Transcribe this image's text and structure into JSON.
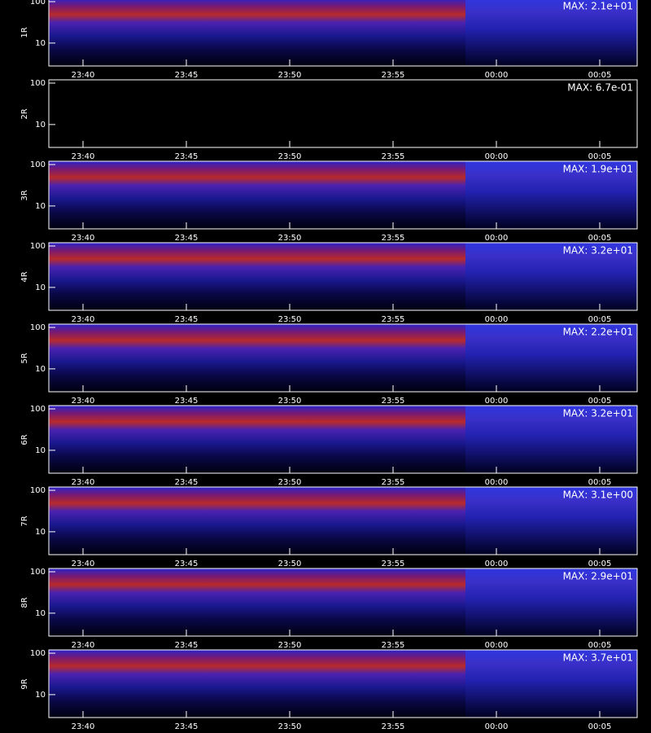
{
  "chart_data": [
    {
      "type": "spectrogram",
      "ylabel": "1R",
      "annotation": "MAX: 2.1e+01",
      "log_y": true,
      "ylim": [
        2.8,
        120
      ],
      "yticks": [
        10,
        100
      ],
      "xticks": [
        "23:40",
        "23:45",
        "23:50",
        "23:55",
        "00:00",
        "00:05"
      ]
    },
    {
      "type": "spectrogram",
      "ylabel": "2R",
      "annotation": "MAX: 6.7e-01",
      "log_y": true,
      "ylim": [
        2.8,
        120
      ],
      "yticks": [
        10,
        100
      ],
      "xticks": [
        "23:40",
        "23:45",
        "23:50",
        "23:55",
        "00:00",
        "00:05"
      ]
    },
    {
      "type": "spectrogram",
      "ylabel": "3R",
      "annotation": "MAX: 1.9e+01",
      "log_y": true,
      "ylim": [
        2.8,
        120
      ],
      "yticks": [
        10,
        100
      ],
      "xticks": [
        "23:40",
        "23:45",
        "23:50",
        "23:55",
        "00:00",
        "00:05"
      ]
    },
    {
      "type": "spectrogram",
      "ylabel": "4R",
      "annotation": "MAX: 3.2e+01",
      "log_y": true,
      "ylim": [
        2.8,
        120
      ],
      "yticks": [
        10,
        100
      ],
      "xticks": [
        "23:40",
        "23:45",
        "23:50",
        "23:55",
        "00:00",
        "00:05"
      ]
    },
    {
      "type": "spectrogram",
      "ylabel": "5R",
      "annotation": "MAX: 2.2e+01",
      "log_y": true,
      "ylim": [
        2.8,
        120
      ],
      "yticks": [
        10,
        100
      ],
      "xticks": [
        "23:40",
        "23:45",
        "23:50",
        "23:55",
        "00:00",
        "00:05"
      ]
    },
    {
      "type": "spectrogram",
      "ylabel": "6R",
      "annotation": "MAX: 3.2e+01",
      "log_y": true,
      "ylim": [
        2.8,
        120
      ],
      "yticks": [
        10,
        100
      ],
      "xticks": [
        "23:40",
        "23:45",
        "23:50",
        "23:55",
        "00:00",
        "00:05"
      ]
    },
    {
      "type": "spectrogram",
      "ylabel": "7R",
      "annotation": "MAX: 3.1e+00",
      "log_y": true,
      "ylim": [
        2.8,
        120
      ],
      "yticks": [
        10,
        100
      ],
      "xticks": [
        "23:40",
        "23:45",
        "23:50",
        "23:55",
        "00:00",
        "00:05"
      ]
    },
    {
      "type": "spectrogram",
      "ylabel": "8R",
      "annotation": "MAX: 2.9e+01",
      "log_y": true,
      "ylim": [
        2.8,
        120
      ],
      "yticks": [
        10,
        100
      ],
      "xticks": [
        "23:40",
        "23:45",
        "23:50",
        "23:55",
        "00:00",
        "00:05"
      ]
    },
    {
      "type": "spectrogram",
      "ylabel": "9R",
      "annotation": "MAX: 3.7e+01",
      "log_y": true,
      "ylim": [
        2.8,
        120
      ],
      "yticks": [
        10,
        100
      ],
      "xticks": [
        "23:40",
        "23:45",
        "23:50",
        "23:55",
        "00:00",
        "00:05"
      ]
    }
  ]
}
